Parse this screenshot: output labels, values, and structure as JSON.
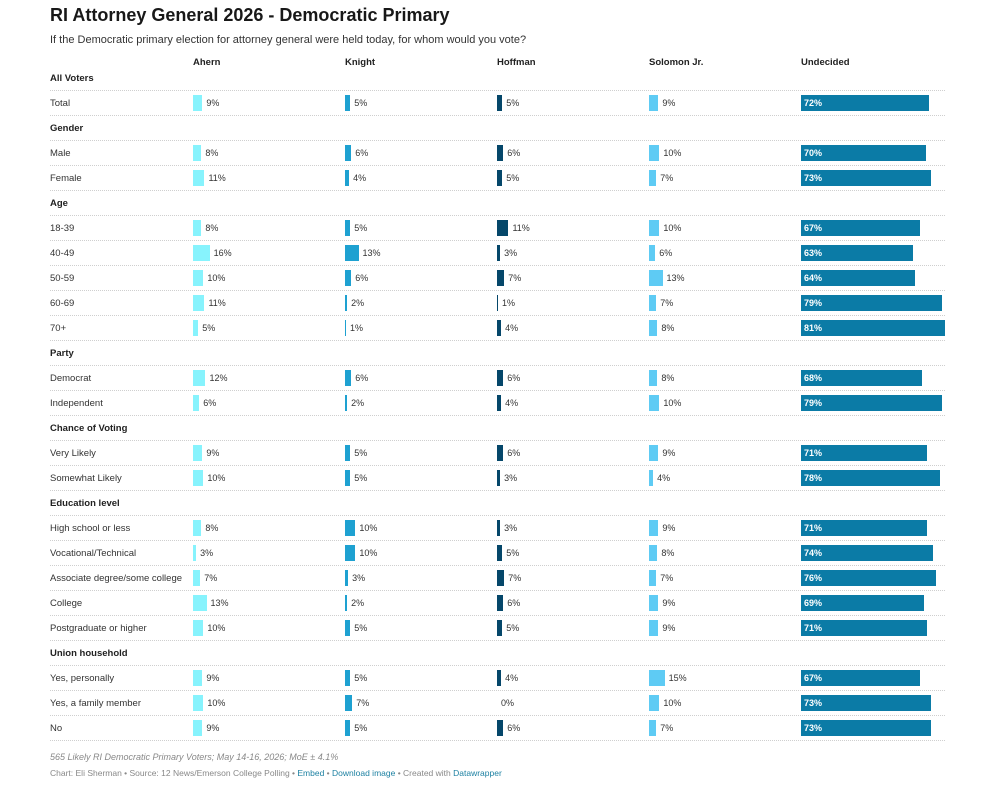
{
  "header": {
    "title": "RI Attorney General 2026 - Democratic Primary",
    "subtitle": "If the Democratic primary election for attorney general were held today, for whom would you vote?"
  },
  "colors": {
    "Ahern": "#87f3fd",
    "Knight": "#1ea1d1",
    "Hoffman": "#05476a",
    "Solomon Jr.": "#5ecbf4",
    "Undecided": "#0b7ba6"
  },
  "chart_data": {
    "type": "table",
    "columns": [
      "Ahern",
      "Knight",
      "Hoffman",
      "Solomon Jr.",
      "Undecided"
    ],
    "unit": "%",
    "groups": [
      {
        "name": "All Voters",
        "rows": [
          {
            "label": "Total",
            "values": [
              9,
              5,
              5,
              9,
              72
            ]
          }
        ]
      },
      {
        "name": "Gender",
        "rows": [
          {
            "label": "Male",
            "values": [
              8,
              6,
              6,
              10,
              70
            ]
          },
          {
            "label": "Female",
            "values": [
              11,
              4,
              5,
              7,
              73
            ]
          }
        ]
      },
      {
        "name": "Age",
        "rows": [
          {
            "label": "18-39",
            "values": [
              8,
              5,
              11,
              10,
              67
            ]
          },
          {
            "label": "40-49",
            "values": [
              16,
              13,
              3,
              6,
              63
            ]
          },
          {
            "label": "50-59",
            "values": [
              10,
              6,
              7,
              13,
              64
            ]
          },
          {
            "label": "60-69",
            "values": [
              11,
              2,
              1,
              7,
              79
            ]
          },
          {
            "label": "70+",
            "values": [
              5,
              1,
              4,
              8,
              81
            ]
          }
        ]
      },
      {
        "name": "Party",
        "rows": [
          {
            "label": "Democrat",
            "values": [
              12,
              6,
              6,
              8,
              68
            ]
          },
          {
            "label": "Independent",
            "values": [
              6,
              2,
              4,
              10,
              79
            ]
          }
        ]
      },
      {
        "name": "Chance of Voting",
        "rows": [
          {
            "label": "Very Likely",
            "values": [
              9,
              5,
              6,
              9,
              71
            ]
          },
          {
            "label": "Somewhat Likely",
            "values": [
              10,
              5,
              3,
              4,
              78
            ]
          }
        ]
      },
      {
        "name": "Education level",
        "rows": [
          {
            "label": "High school or less",
            "values": [
              8,
              10,
              3,
              9,
              71
            ]
          },
          {
            "label": "Vocational/Technical",
            "values": [
              3,
              10,
              5,
              8,
              74
            ]
          },
          {
            "label": "Associate degree/some college",
            "values": [
              7,
              3,
              7,
              7,
              76
            ]
          },
          {
            "label": "College",
            "values": [
              13,
              2,
              6,
              9,
              69
            ]
          },
          {
            "label": "Postgraduate or higher",
            "values": [
              10,
              5,
              5,
              9,
              71
            ]
          }
        ]
      },
      {
        "name": "Union household",
        "rows": [
          {
            "label": "Yes, personally",
            "values": [
              9,
              5,
              4,
              15,
              67
            ]
          },
          {
            "label": "Yes, a family member",
            "values": [
              10,
              7,
              0,
              10,
              73
            ]
          },
          {
            "label": "No",
            "values": [
              9,
              5,
              6,
              7,
              73
            ]
          }
        ]
      }
    ]
  },
  "notes": "565 Likely RI Democratic Primary Voters; May 14-16, 2026; MoE ± 4.1%",
  "footer": {
    "credit": "Chart: Eli Sherman • Source: 12 News/Emerson College Polling • ",
    "embed": "Embed",
    "sep1": " • ",
    "download": "Download image",
    "created": " • Created with ",
    "tool": "Datawrapper"
  }
}
